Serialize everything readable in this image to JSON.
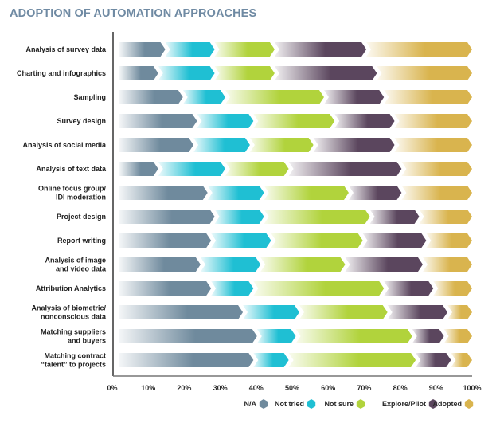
{
  "chart_data": {
    "type": "bar",
    "orientation": "horizontal",
    "stacked": true,
    "title": "ADOPTION OF AUTOMATION APPROACHES",
    "xlabel": "",
    "ylabel": "",
    "xlim": [
      0,
      100
    ],
    "x_ticks": [
      "0%",
      "10%",
      "20%",
      "30%",
      "40%",
      "50%",
      "60%",
      "70%",
      "80%",
      "90%",
      "100%"
    ],
    "grid": false,
    "legend_position": "bottom-right",
    "categories": [
      [
        "Analysis of survey data"
      ],
      [
        "Charting and infographics"
      ],
      [
        "Sampling"
      ],
      [
        "Survey design"
      ],
      [
        "Analysis of social media"
      ],
      [
        "Analysis of text data"
      ],
      [
        "Online focus group/",
        "IDI moderation"
      ],
      [
        "Project design"
      ],
      [
        "Report writing"
      ],
      [
        "Analysis of image",
        "and video data"
      ],
      [
        "Attribution Analytics"
      ],
      [
        "Analysis of biometric/",
        "nonconscious data"
      ],
      [
        "Matching suppliers",
        "and buyers"
      ],
      [
        "Matching contract",
        "“talent” to projects"
      ]
    ],
    "series": [
      {
        "name": "N/A",
        "color": "#6f8a9d",
        "values": [
          13,
          11,
          18,
          22,
          21,
          11,
          25,
          27,
          26,
          23,
          26,
          35,
          39,
          38
        ]
      },
      {
        "name": "Not tried",
        "color": "#1fbfd3",
        "values": [
          14,
          16,
          12,
          16,
          16,
          19,
          16,
          14,
          17,
          17,
          12,
          16,
          11,
          10
        ]
      },
      {
        "name": "Not sure",
        "color": "#b1d33c",
        "values": [
          17,
          17,
          28,
          23,
          18,
          18,
          24,
          30,
          26,
          24,
          37,
          25,
          33,
          36
        ]
      },
      {
        "name": "Explore/Pilot",
        "color": "#5b465e",
        "values": [
          26,
          29,
          17,
          17,
          23,
          32,
          15,
          14,
          18,
          22,
          14,
          17,
          9,
          10
        ]
      },
      {
        "name": "Adopted",
        "color": "#d9b44e",
        "values": [
          30,
          27,
          25,
          22,
          22,
          20,
          20,
          15,
          13,
          14,
          11,
          7,
          8,
          6
        ]
      }
    ]
  }
}
